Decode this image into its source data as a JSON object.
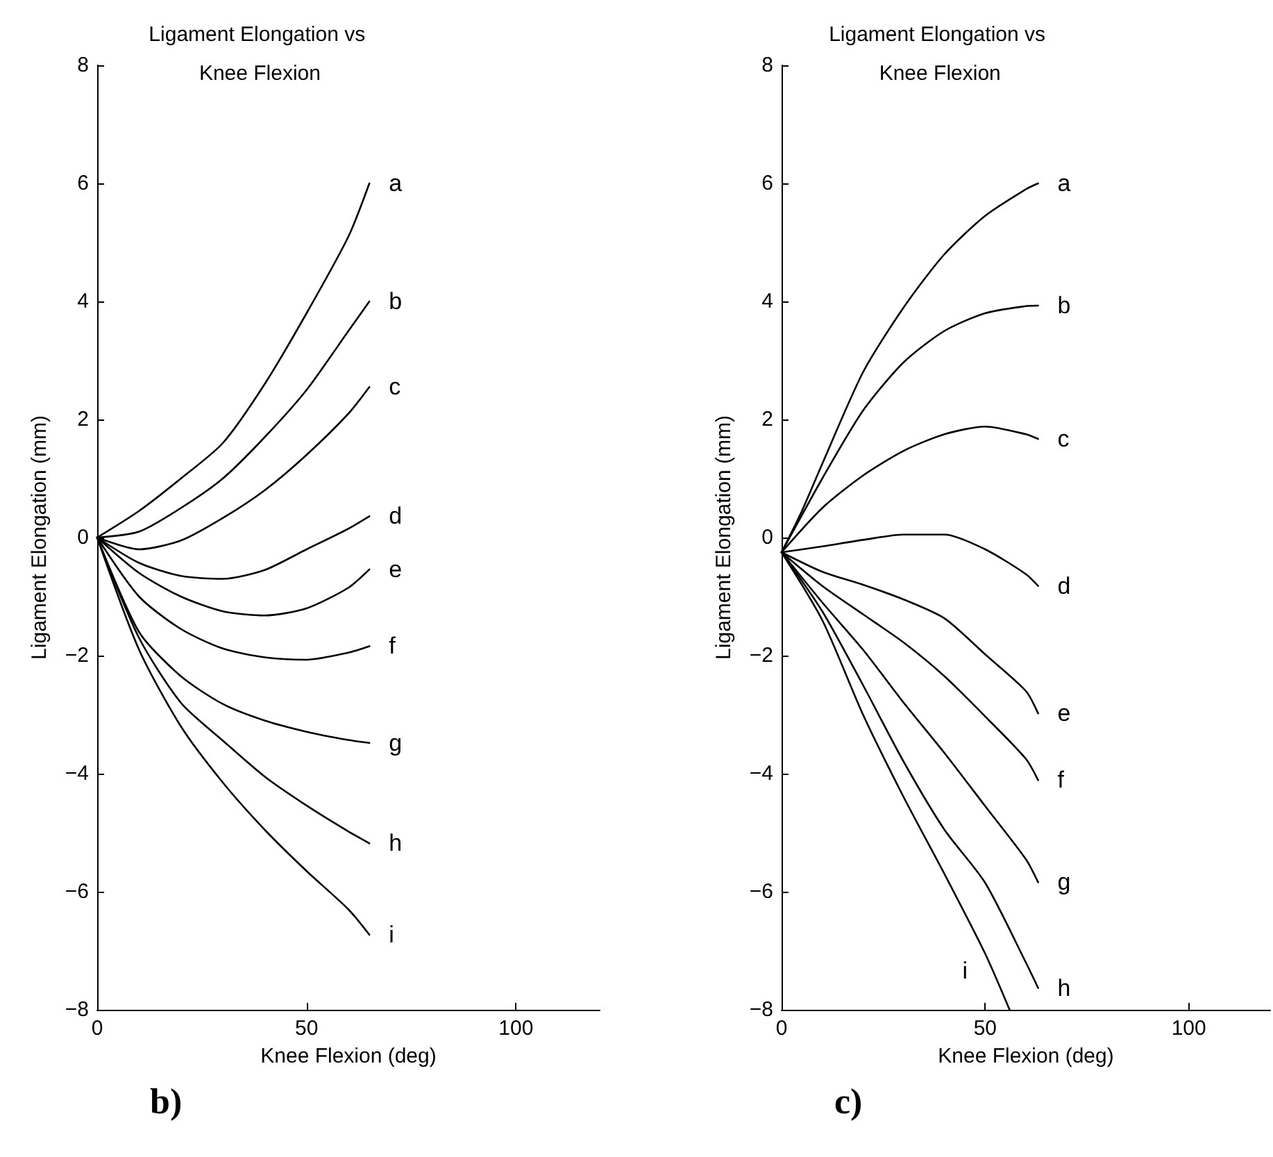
{
  "chart_data": [
    {
      "type": "line",
      "title": "Ligament Elongation vs Knee Flexion",
      "xlabel": "Knee Flexion (deg)",
      "ylabel": "Ligament Elongation (mm)",
      "xlim": [
        0,
        120
      ],
      "xticks": [
        0,
        50,
        100
      ],
      "ylim": [
        -8,
        8
      ],
      "yticks": [
        -8,
        -6,
        -4,
        -2,
        0,
        2,
        4,
        6,
        8
      ],
      "grid": false,
      "legend": false,
      "marker": "none",
      "line_style": "solid",
      "series": [
        {
          "name": "a",
          "color": "#000000",
          "x": [
            0,
            10,
            20,
            30,
            40,
            50,
            60,
            65
          ],
          "values": [
            0,
            0.45,
            1.0,
            1.6,
            2.6,
            3.8,
            5.1,
            6
          ]
        },
        {
          "name": "b",
          "color": "#000000",
          "x": [
            0,
            10,
            20,
            30,
            40,
            50,
            60,
            65
          ],
          "values": [
            0,
            0.1,
            0.5,
            1.0,
            1.7,
            2.5,
            3.5,
            4
          ]
        },
        {
          "name": "c",
          "color": "#000000",
          "x": [
            0,
            10,
            20,
            30,
            40,
            50,
            60,
            65
          ],
          "values": [
            0,
            -0.2,
            -0.05,
            0.33,
            0.8,
            1.4,
            2.1,
            2.55
          ]
        },
        {
          "name": "d",
          "color": "#000000",
          "x": [
            0,
            10,
            20,
            30,
            40,
            50,
            60,
            65
          ],
          "values": [
            0,
            -0.43,
            -0.65,
            -0.7,
            -0.55,
            -0.2,
            0.15,
            0.36
          ]
        },
        {
          "name": "e",
          "color": "#000000",
          "x": [
            0,
            10,
            20,
            30,
            40,
            50,
            60,
            65
          ],
          "values": [
            0,
            -0.6,
            -1.0,
            -1.25,
            -1.32,
            -1.2,
            -0.85,
            -0.54
          ]
        },
        {
          "name": "f",
          "color": "#000000",
          "x": [
            0,
            10,
            20,
            30,
            40,
            50,
            60,
            65
          ],
          "values": [
            0,
            -1.0,
            -1.55,
            -1.88,
            -2.03,
            -2.07,
            -1.95,
            -1.84
          ]
        },
        {
          "name": "g",
          "color": "#000000",
          "x": [
            0,
            10,
            20,
            30,
            40,
            50,
            60,
            65
          ],
          "values": [
            0,
            -1.6,
            -2.35,
            -2.82,
            -3.1,
            -3.29,
            -3.43,
            -3.48
          ]
        },
        {
          "name": "h",
          "color": "#000000",
          "x": [
            0,
            10,
            20,
            30,
            40,
            50,
            60,
            65
          ],
          "values": [
            0,
            -1.7,
            -2.8,
            -3.44,
            -4.05,
            -4.54,
            -4.98,
            -5.18
          ]
        },
        {
          "name": "i",
          "color": "#000000",
          "x": [
            0,
            10,
            20,
            30,
            40,
            50,
            60,
            65
          ],
          "values": [
            0,
            -1.9,
            -3.2,
            -4.15,
            -4.95,
            -5.65,
            -6.3,
            -6.73
          ]
        }
      ],
      "annotations": [
        "b)"
      ]
    },
    {
      "type": "line",
      "title": "Ligament Elongation vs Knee Flexion",
      "xlabel": "Knee Flexion (deg)",
      "ylabel": "Ligament Elongation (mm)",
      "xlim": [
        0,
        120
      ],
      "xticks": [
        0,
        50,
        100
      ],
      "ylim": [
        -8,
        8
      ],
      "yticks": [
        -8,
        -6,
        -4,
        -2,
        0,
        2,
        4,
        6,
        8
      ],
      "grid": false,
      "legend": false,
      "marker": "none",
      "line_style": "solid",
      "series": [
        {
          "name": "a",
          "color": "#000000",
          "x": [
            0,
            5,
            10,
            20,
            30,
            40,
            50,
            60,
            63
          ],
          "values": [
            -0.25,
            0.45,
            1.25,
            2.8,
            3.9,
            4.8,
            5.45,
            5.9,
            6
          ]
        },
        {
          "name": "b",
          "color": "#000000",
          "x": [
            0,
            10,
            20,
            30,
            40,
            50,
            60,
            63
          ],
          "values": [
            -0.25,
            1.0,
            2.15,
            2.97,
            3.5,
            3.8,
            3.92,
            3.93
          ]
        },
        {
          "name": "c",
          "color": "#000000",
          "x": [
            0,
            10,
            20,
            30,
            40,
            50,
            60,
            63
          ],
          "values": [
            -0.25,
            0.5,
            1.05,
            1.47,
            1.75,
            1.88,
            1.75,
            1.67
          ]
        },
        {
          "name": "d",
          "color": "#000000",
          "x": [
            0,
            10,
            20,
            30,
            40,
            50,
            60,
            63
          ],
          "values": [
            -0.25,
            -0.15,
            -0.04,
            0.05,
            0.05,
            -0.2,
            -0.62,
            -0.82
          ]
        },
        {
          "name": "e",
          "color": "#000000",
          "x": [
            0,
            10,
            20,
            30,
            40,
            50,
            60,
            63
          ],
          "values": [
            -0.25,
            -0.58,
            -0.8,
            -1.05,
            -1.37,
            -1.98,
            -2.6,
            -2.98
          ]
        },
        {
          "name": "f",
          "color": "#000000",
          "x": [
            0,
            10,
            20,
            30,
            40,
            50,
            60,
            63
          ],
          "values": [
            -0.25,
            -0.82,
            -1.3,
            -1.78,
            -2.35,
            -3.03,
            -3.75,
            -4.11
          ]
        },
        {
          "name": "g",
          "color": "#000000",
          "x": [
            0,
            10,
            20,
            30,
            40,
            50,
            60,
            63
          ],
          "values": [
            -0.25,
            -1.1,
            -1.9,
            -2.8,
            -3.65,
            -4.55,
            -5.45,
            -5.84
          ]
        },
        {
          "name": "h",
          "color": "#000000",
          "x": [
            0,
            10,
            20,
            30,
            40,
            50,
            60,
            63
          ],
          "values": [
            -0.25,
            -1.25,
            -2.5,
            -3.8,
            -4.95,
            -5.85,
            -7.2,
            -7.63
          ]
        },
        {
          "name": "i",
          "color": "#000000",
          "x": [
            0,
            10,
            20,
            30,
            40,
            50,
            56
          ],
          "values": [
            -0.25,
            -1.4,
            -3.0,
            -4.4,
            -5.7,
            -7.05,
            -8
          ]
        }
      ],
      "annotations": [
        "c)"
      ]
    }
  ]
}
